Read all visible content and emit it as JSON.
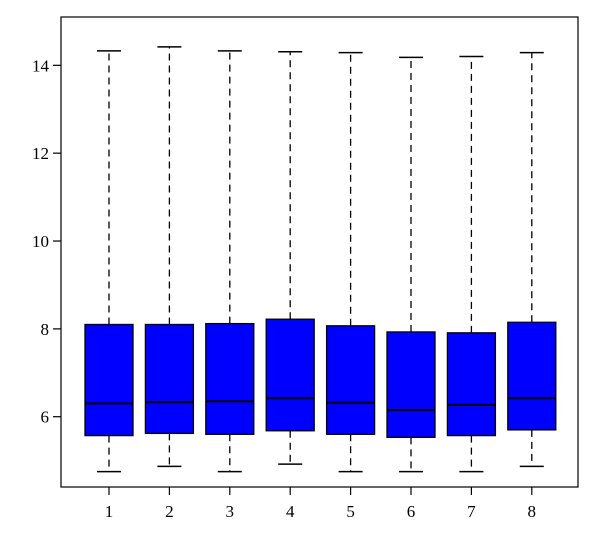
{
  "chart_data": {
    "type": "boxplot",
    "title": "",
    "xlabel": "",
    "ylabel": "",
    "categories": [
      "1",
      "2",
      "3",
      "4",
      "5",
      "6",
      "7",
      "8"
    ],
    "yticks": [
      "6",
      "8",
      "10",
      "12",
      "14"
    ],
    "ylim": [
      4.4,
      15.1
    ],
    "grid": false,
    "legend": "none",
    "box_color": "#0000ff",
    "series": [
      {
        "min": [
          4.75,
          4.87,
          4.75,
          4.92,
          4.75,
          4.75,
          4.75,
          4.87
        ],
        "q1": [
          5.57,
          5.62,
          5.6,
          5.68,
          5.6,
          5.53,
          5.57,
          5.7
        ],
        "median": [
          6.3,
          6.33,
          6.35,
          6.42,
          6.32,
          6.15,
          6.27,
          6.42
        ],
        "q3": [
          8.1,
          8.1,
          8.12,
          8.22,
          8.07,
          7.93,
          7.91,
          8.15
        ],
        "max": [
          14.33,
          14.42,
          14.33,
          14.31,
          14.29,
          14.18,
          14.2,
          14.29
        ]
      }
    ]
  }
}
